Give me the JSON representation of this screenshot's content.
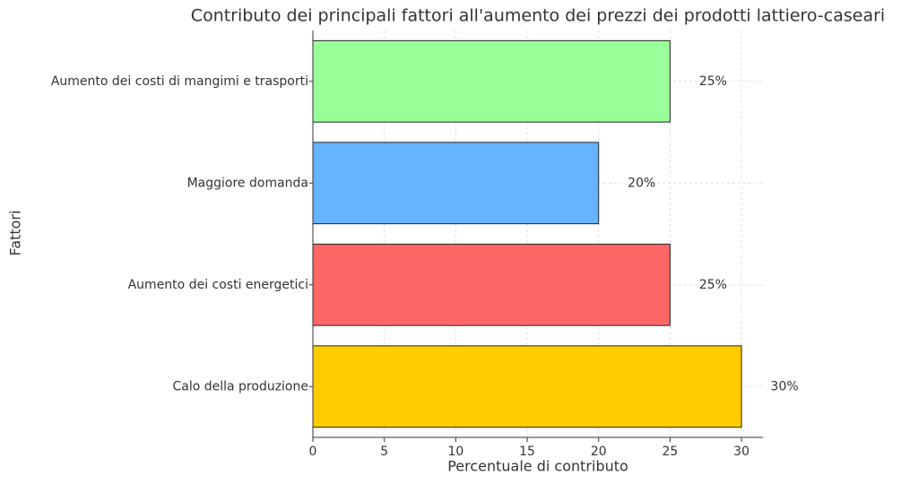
{
  "chart_data": {
    "type": "barh",
    "title": "Contributo dei principali fattori all'aumento dei prezzi dei prodotti lattiero-caseari",
    "xlabel": "Percentuale di contributo",
    "ylabel": "Fattori",
    "categories": [
      "Calo della produzione",
      "Aumento dei costi energetici",
      "Maggiore domanda",
      "Aumento dei costi di mangimi e trasporti"
    ],
    "values": [
      30,
      25,
      20,
      25
    ],
    "value_labels": [
      "30%",
      "25%",
      "20%",
      "25%"
    ],
    "colors": [
      "#ffcc00",
      "#ff6666",
      "#66b3ff",
      "#99ff99"
    ],
    "xlim": [
      0,
      31.5
    ],
    "xticks": [
      0,
      5,
      10,
      15,
      20,
      25,
      30
    ],
    "grid": true
  }
}
